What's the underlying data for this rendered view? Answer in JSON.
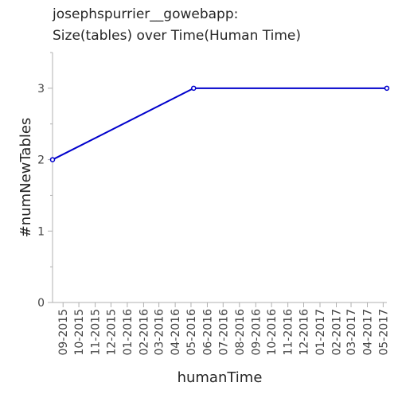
{
  "chart_data": {
    "type": "line",
    "title": "josephspurrier__gowebapp:",
    "subtitle": "Size(tables) over Time(Human Time)",
    "xlabel": "humanTime",
    "ylabel": "#numNewTables",
    "x_ticks": [
      "09-2015",
      "10-2015",
      "11-2015",
      "12-2015",
      "01-2016",
      "02-2016",
      "03-2016",
      "04-2016",
      "05-2016",
      "06-2016",
      "07-2016",
      "08-2016",
      "09-2016",
      "10-2016",
      "11-2016",
      "12-2016",
      "01-2017",
      "02-2017",
      "03-2017",
      "04-2017",
      "05-2017"
    ],
    "y_ticks": [
      0,
      1,
      2,
      3
    ],
    "ylim": [
      0,
      3.5
    ],
    "xlim": [
      "2015-08-12",
      "2017-05-08"
    ],
    "grid": false,
    "series": [
      {
        "color": "#0000cc",
        "points": [
          {
            "x": "2015-08-12",
            "y": 2
          },
          {
            "x": "2016-05-06",
            "y": 3
          },
          {
            "x": "2017-05-08",
            "y": 3
          }
        ]
      }
    ]
  }
}
